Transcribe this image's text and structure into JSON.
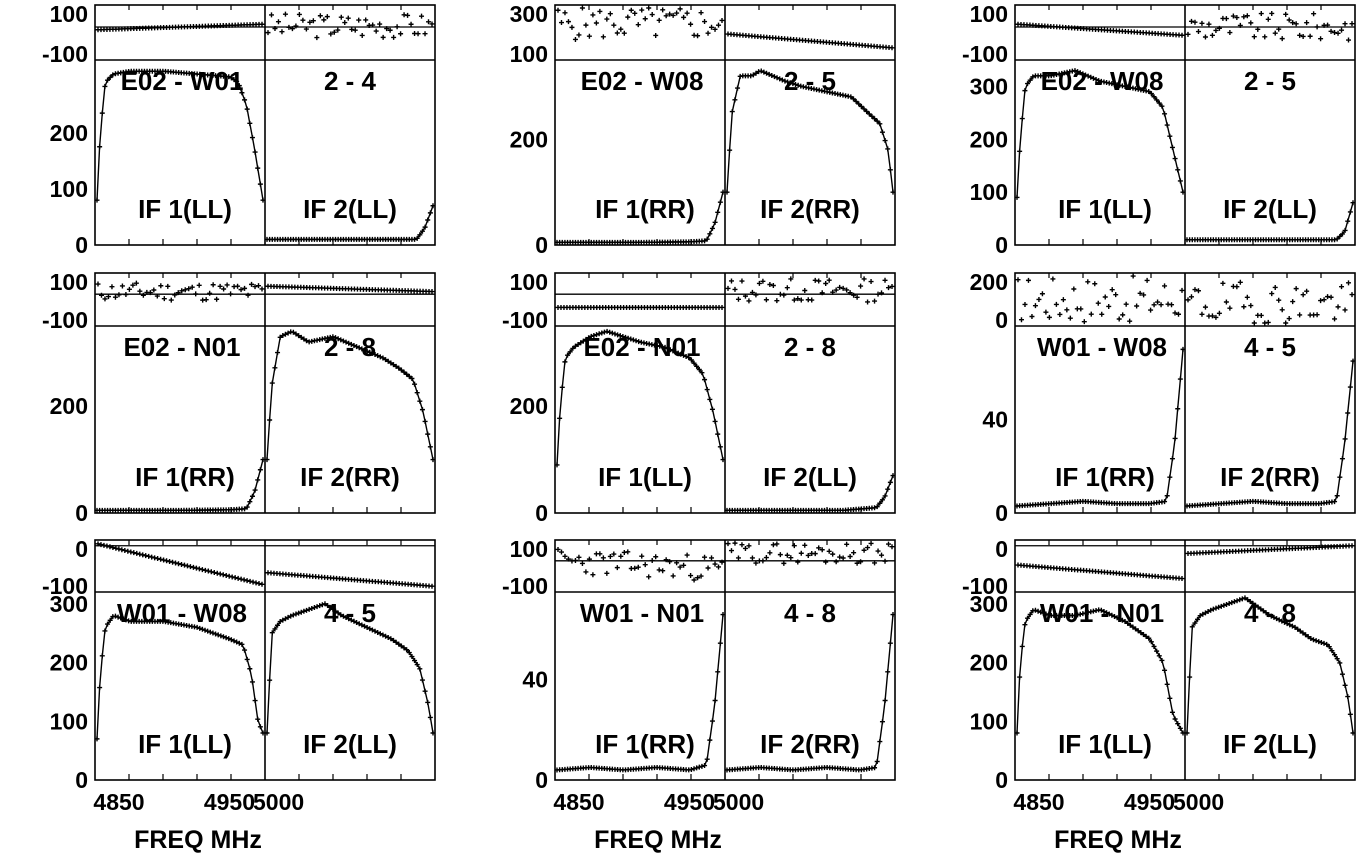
{
  "chart_data": [
    {
      "type": "line",
      "baseline": "E02 - W01",
      "pair": "2 - 4",
      "left_if": "IF 1(LL)",
      "right_if": "IF 2(LL)",
      "top_ticks": [
        "100",
        "-100"
      ],
      "bottom_ticks": [
        "200",
        "100",
        "0"
      ],
      "top_range": [
        -240,
        160
      ],
      "top_zero": 0,
      "amp_range": [
        0,
        330
      ],
      "left_amp": {
        "x": [
          0,
          0.02,
          0.05,
          0.1,
          0.2,
          0.4,
          0.6,
          0.8,
          0.85,
          0.9,
          0.95,
          1.0
        ],
        "y": [
          80,
          200,
          290,
          305,
          310,
          310,
          305,
          300,
          290,
          250,
          170,
          80
        ]
      },
      "right_amp": {
        "x": [
          0,
          0.3,
          0.7,
          0.9,
          0.95,
          1.0
        ],
        "y": [
          10,
          10,
          10,
          10,
          30,
          70
        ]
      },
      "left_phase": {
        "kind": "trend",
        "y0": -20,
        "y1": 20
      },
      "right_phase": {
        "kind": "scatter",
        "y0": 10,
        "y1": 10,
        "spread": 90,
        "seed": 3
      },
      "x_ticks": null
    },
    {
      "type": "line",
      "baseline": "E02 - W08",
      "pair": "2 - 5",
      "left_if": "IF 1(RR)",
      "right_if": "IF 2(RR)",
      "top_ticks": [
        "300",
        "100"
      ],
      "bottom_ticks": [
        "200",
        "0"
      ],
      "top_range": [
        -40,
        320
      ],
      "top_zero": null,
      "amp_range": [
        0,
        350
      ],
      "left_amp": {
        "x": [
          0,
          0.5,
          0.8,
          0.9,
          0.95,
          1.0
        ],
        "y": [
          5,
          5,
          6,
          8,
          40,
          100
        ]
      },
      "right_amp": {
        "x": [
          0,
          0.03,
          0.08,
          0.15,
          0.2,
          0.35,
          0.45,
          0.6,
          0.75,
          0.85,
          0.92,
          0.97,
          1.0
        ],
        "y": [
          100,
          250,
          320,
          320,
          330,
          310,
          300,
          290,
          280,
          250,
          230,
          180,
          100
        ]
      },
      "left_phase": {
        "kind": "scatter",
        "y0": 200,
        "y1": 200,
        "spread": 110,
        "seed": 5
      },
      "right_phase": {
        "kind": "trend",
        "y0": 130,
        "y1": 40
      },
      "x_ticks": null
    },
    {
      "type": "line",
      "baseline": "E02 - W08",
      "pair": "2 - 5",
      "left_if": "IF 1(LL)",
      "right_if": "IF 2(LL)",
      "top_ticks": [
        "100",
        "-100"
      ],
      "bottom_ticks": [
        "300",
        "200",
        "100",
        "0"
      ],
      "top_range": [
        -240,
        160
      ],
      "top_zero": 0,
      "amp_range": [
        0,
        350
      ],
      "left_amp": {
        "x": [
          0,
          0.02,
          0.05,
          0.1,
          0.2,
          0.35,
          0.5,
          0.65,
          0.8,
          0.88,
          0.94,
          1.0
        ],
        "y": [
          90,
          200,
          300,
          320,
          320,
          330,
          310,
          300,
          290,
          260,
          180,
          100
        ]
      },
      "right_amp": {
        "x": [
          0,
          0.3,
          0.7,
          0.9,
          0.95,
          1.0
        ],
        "y": [
          10,
          10,
          10,
          10,
          25,
          80
        ]
      },
      "left_phase": {
        "kind": "trend",
        "y0": 20,
        "y1": -60
      },
      "right_phase": {
        "kind": "scatter",
        "y0": 0,
        "y1": 0,
        "spread": 100,
        "seed": 9
      },
      "x_ticks": null
    },
    {
      "type": "line",
      "baseline": "E02 - N01",
      "pair": "2 - 8",
      "left_if": "IF 1(RR)",
      "right_if": "IF 2(RR)",
      "top_ticks": [
        "100",
        "-100"
      ],
      "bottom_ticks": [
        "200",
        "0"
      ],
      "top_range": [
        -240,
        160
      ],
      "top_zero": 0,
      "amp_range": [
        0,
        350
      ],
      "left_amp": {
        "x": [
          0,
          0.5,
          0.8,
          0.9,
          0.95,
          1.0
        ],
        "y": [
          5,
          5,
          6,
          8,
          40,
          100
        ]
      },
      "right_amp": {
        "x": [
          0,
          0.03,
          0.08,
          0.15,
          0.25,
          0.4,
          0.55,
          0.7,
          0.8,
          0.88,
          0.94,
          1.0
        ],
        "y": [
          100,
          240,
          330,
          340,
          320,
          330,
          310,
          290,
          270,
          250,
          190,
          100
        ]
      },
      "left_phase": {
        "kind": "scatter",
        "y0": 20,
        "y1": 20,
        "spread": 70,
        "seed": 11
      },
      "right_phase": {
        "kind": "trend",
        "y0": 60,
        "y1": 20
      },
      "x_ticks": null
    },
    {
      "type": "line",
      "baseline": "E02 - N01",
      "pair": "2 - 8",
      "left_if": "IF 1(LL)",
      "right_if": "IF 2(LL)",
      "top_ticks": [
        "100",
        "-100"
      ],
      "bottom_ticks": [
        "200",
        "0"
      ],
      "top_range": [
        -240,
        160
      ],
      "top_zero": 0,
      "amp_range": [
        0,
        350
      ],
      "left_amp": {
        "x": [
          0,
          0.02,
          0.05,
          0.1,
          0.2,
          0.3,
          0.5,
          0.65,
          0.8,
          0.88,
          0.94,
          1.0
        ],
        "y": [
          90,
          200,
          290,
          310,
          330,
          340,
          320,
          310,
          290,
          260,
          190,
          100
        ]
      },
      "right_amp": {
        "x": [
          0,
          0.3,
          0.7,
          0.9,
          0.95,
          1.0
        ],
        "y": [
          5,
          5,
          5,
          10,
          30,
          70
        ]
      },
      "left_phase": {
        "kind": "trend",
        "y0": -100,
        "y1": -100
      },
      "right_phase": {
        "kind": "scatter",
        "y0": 30,
        "y1": 30,
        "spread": 90,
        "seed": 13
      },
      "x_ticks": null
    },
    {
      "type": "line",
      "baseline": "W01 - W08",
      "pair": "4 - 5",
      "left_if": "IF 1(RR)",
      "right_if": "IF 2(RR)",
      "top_ticks": [
        "200",
        "0"
      ],
      "bottom_ticks": [
        "40",
        "0"
      ],
      "top_range": [
        0,
        360
      ],
      "top_zero": 0,
      "amp_range": [
        0,
        80
      ],
      "left_amp": {
        "x": [
          0,
          0.2,
          0.4,
          0.6,
          0.8,
          0.9,
          0.95,
          1.0
        ],
        "y": [
          3,
          4,
          5,
          4,
          4,
          5,
          30,
          70
        ]
      },
      "right_amp": {
        "x": [
          0,
          0.2,
          0.4,
          0.6,
          0.8,
          0.9,
          0.95,
          1.0
        ],
        "y": [
          3,
          4,
          5,
          4,
          4,
          5,
          30,
          65
        ]
      },
      "left_phase": {
        "kind": "scatter",
        "y0": 180,
        "y1": 180,
        "spread": 160,
        "seed": 17
      },
      "right_phase": {
        "kind": "scatter",
        "y0": 150,
        "y1": 150,
        "spread": 150,
        "seed": 19
      },
      "x_ticks": null
    },
    {
      "type": "line",
      "baseline": "W01 - W08",
      "pair": "4 - 5",
      "left_if": "IF 1(LL)",
      "right_if": "IF 2(LL)",
      "top_ticks": [
        "0",
        "-100"
      ],
      "bottom_ticks": [
        "300",
        "200",
        "100",
        "0"
      ],
      "top_range": [
        -240,
        30
      ],
      "top_zero": 0,
      "amp_range": [
        0,
        320
      ],
      "left_amp": {
        "x": [
          0,
          0.02,
          0.05,
          0.1,
          0.2,
          0.4,
          0.6,
          0.8,
          0.88,
          0.93,
          0.97,
          1.0
        ],
        "y": [
          70,
          180,
          260,
          280,
          270,
          270,
          260,
          240,
          230,
          180,
          100,
          80
        ]
      },
      "right_amp": {
        "x": [
          0,
          0.03,
          0.08,
          0.15,
          0.25,
          0.35,
          0.45,
          0.6,
          0.75,
          0.85,
          0.92,
          0.97,
          1.0
        ],
        "y": [
          80,
          250,
          270,
          280,
          290,
          300,
          280,
          260,
          240,
          220,
          190,
          130,
          80
        ]
      },
      "left_phase": {
        "kind": "trend",
        "y0": 10,
        "y1": -200
      },
      "right_phase": {
        "kind": "trend",
        "y0": -140,
        "y1": -210
      },
      "x_ticks": {
        "left": [
          "4850",
          "4950"
        ],
        "right": [
          "5000"
        ]
      }
    },
    {
      "type": "line",
      "baseline": "W01 - N01",
      "pair": "4 - 8",
      "left_if": "IF 1(RR)",
      "right_if": "IF 2(RR)",
      "top_ticks": [
        "100",
        "-100"
      ],
      "bottom_ticks": [
        "40",
        "0"
      ],
      "top_range": [
        -240,
        160
      ],
      "top_zero": 0,
      "amp_range": [
        0,
        75
      ],
      "left_amp": {
        "x": [
          0,
          0.2,
          0.4,
          0.6,
          0.8,
          0.9,
          0.95,
          1.0
        ],
        "y": [
          4,
          5,
          4,
          5,
          4,
          6,
          30,
          66
        ]
      },
      "right_amp": {
        "x": [
          0,
          0.2,
          0.4,
          0.6,
          0.8,
          0.9,
          0.95,
          1.0
        ],
        "y": [
          4,
          5,
          4,
          5,
          4,
          5,
          30,
          66
        ]
      },
      "left_phase": {
        "kind": "scatter",
        "y0": 0,
        "y1": -60,
        "spread": 100,
        "seed": 23
      },
      "right_phase": {
        "kind": "scatter",
        "y0": 60,
        "y1": 60,
        "spread": 80,
        "seed": 29
      },
      "x_ticks": {
        "left": [
          "4850",
          "4950"
        ],
        "right": [
          "5000"
        ]
      }
    },
    {
      "type": "line",
      "baseline": "W01 - N01",
      "pair": "4 - 8",
      "left_if": "IF 1(LL)",
      "right_if": "IF 2(LL)",
      "top_ticks": [
        "0",
        "-100"
      ],
      "bottom_ticks": [
        "300",
        "200",
        "100",
        "0"
      ],
      "top_range": [
        -240,
        30
      ],
      "top_zero": 0,
      "amp_range": [
        0,
        320
      ],
      "left_amp": {
        "x": [
          0,
          0.02,
          0.05,
          0.1,
          0.2,
          0.35,
          0.5,
          0.65,
          0.8,
          0.88,
          0.94,
          1.0
        ],
        "y": [
          80,
          200,
          270,
          290,
          280,
          280,
          290,
          270,
          240,
          200,
          110,
          80
        ]
      },
      "right_amp": {
        "x": [
          0,
          0.03,
          0.08,
          0.15,
          0.25,
          0.35,
          0.5,
          0.65,
          0.75,
          0.85,
          0.92,
          0.97,
          1.0
        ],
        "y": [
          80,
          260,
          280,
          290,
          300,
          310,
          280,
          260,
          240,
          230,
          200,
          140,
          80
        ]
      },
      "left_phase": {
        "kind": "trend",
        "y0": -100,
        "y1": -170
      },
      "right_phase": {
        "kind": "trend",
        "y0": -40,
        "y1": 0
      },
      "x_ticks": {
        "left": [
          "4850",
          "4950"
        ],
        "right": [
          "5000"
        ]
      }
    }
  ],
  "xlabel": "FREQ MHz"
}
